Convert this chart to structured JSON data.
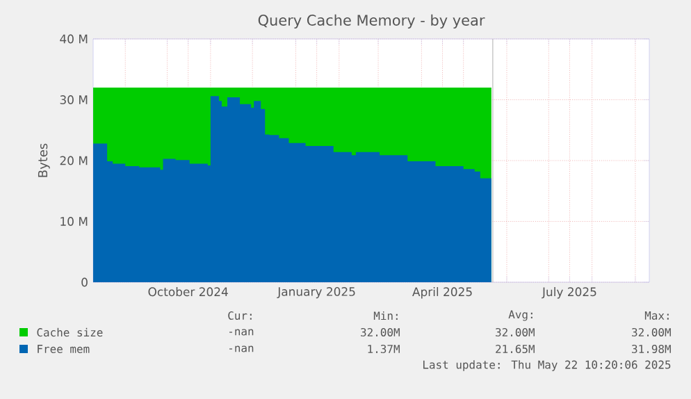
{
  "chart_data": {
    "type": "area",
    "title": "Query Cache Memory - by year",
    "ylabel": "Bytes",
    "xlim": [
      "2024-08-09",
      "2025-09-11"
    ],
    "ylim": [
      0,
      40
    ],
    "xticks": [
      {
        "value": "2024-09-01",
        "label": null
      },
      {
        "value": "2024-10-01",
        "label": null
      },
      {
        "value": "2024-10-16",
        "label": "October 2024"
      },
      {
        "value": "2024-11-01",
        "label": null
      },
      {
        "value": "2024-12-01",
        "label": null
      },
      {
        "value": "2025-01-01",
        "label": null
      },
      {
        "value": "2025-01-16",
        "label": "January 2025"
      },
      {
        "value": "2025-02-01",
        "label": null
      },
      {
        "value": "2025-03-01",
        "label": null
      },
      {
        "value": "2025-04-01",
        "label": null
      },
      {
        "value": "2025-04-16",
        "label": "April 2025"
      },
      {
        "value": "2025-05-01",
        "label": null
      },
      {
        "value": "2025-06-01",
        "label": null
      },
      {
        "value": "2025-07-01",
        "label": null
      },
      {
        "value": "2025-07-16",
        "label": "July 2025"
      },
      {
        "value": "2025-08-01",
        "label": null
      },
      {
        "value": "2025-09-01",
        "label": null
      }
    ],
    "yticks": [
      {
        "value": 0,
        "label": "0"
      },
      {
        "value": 10,
        "label": "10 M"
      },
      {
        "value": 20,
        "label": "20 M"
      },
      {
        "value": 30,
        "label": "30 M"
      },
      {
        "value": 40,
        "label": "40 M"
      }
    ],
    "grid": true,
    "legend": "bottom",
    "series": [
      {
        "name": "Cache size",
        "color": "#00cc00",
        "x": [
          "2024-08-09",
          "2025-05-21"
        ],
        "values": [
          32,
          32
        ]
      },
      {
        "name": "Free mem",
        "color": "#0066b3",
        "x": [
          "2024-08-09",
          "2024-08-18",
          "2024-08-19",
          "2024-08-23",
          "2024-09-01",
          "2024-09-11",
          "2024-09-26",
          "2024-09-28",
          "2024-10-07",
          "2024-10-17",
          "2024-10-30",
          "2024-11-01",
          "2024-11-07",
          "2024-11-09",
          "2024-11-13",
          "2024-11-22",
          "2024-11-30",
          "2024-12-02",
          "2024-12-07",
          "2024-12-10",
          "2024-12-13",
          "2024-12-20",
          "2024-12-27",
          "2025-01-08",
          "2025-01-28",
          "2025-02-10",
          "2025-02-13",
          "2025-03-02",
          "2025-03-22",
          "2025-04-11",
          "2025-05-01",
          "2025-05-09",
          "2025-05-13",
          "2025-05-21"
        ],
        "values": [
          22.8,
          22.8,
          19.9,
          19.5,
          19.1,
          18.9,
          18.5,
          20.3,
          20.1,
          19.5,
          19.2,
          30.6,
          29.8,
          28.9,
          30.4,
          29.3,
          28.7,
          29.8,
          28.5,
          24.3,
          24.2,
          23.7,
          22.9,
          22.4,
          21.4,
          20.9,
          21.4,
          20.9,
          19.9,
          19.1,
          18.6,
          18.2,
          17.1,
          16.8
        ]
      }
    ],
    "ref_lines": [
      {
        "axis": "x",
        "value": "2025-05-22",
        "color": "#999999"
      }
    ],
    "annotations": [
      "Cur:",
      "Min:",
      "Avg:",
      "Max:",
      "-nan",
      "32.00M",
      "32.00M",
      "32.00M",
      "-nan",
      "1.37M",
      "21.65M",
      "31.98M",
      "Last update: Thu May 22 10:20:06 2025"
    ]
  }
}
